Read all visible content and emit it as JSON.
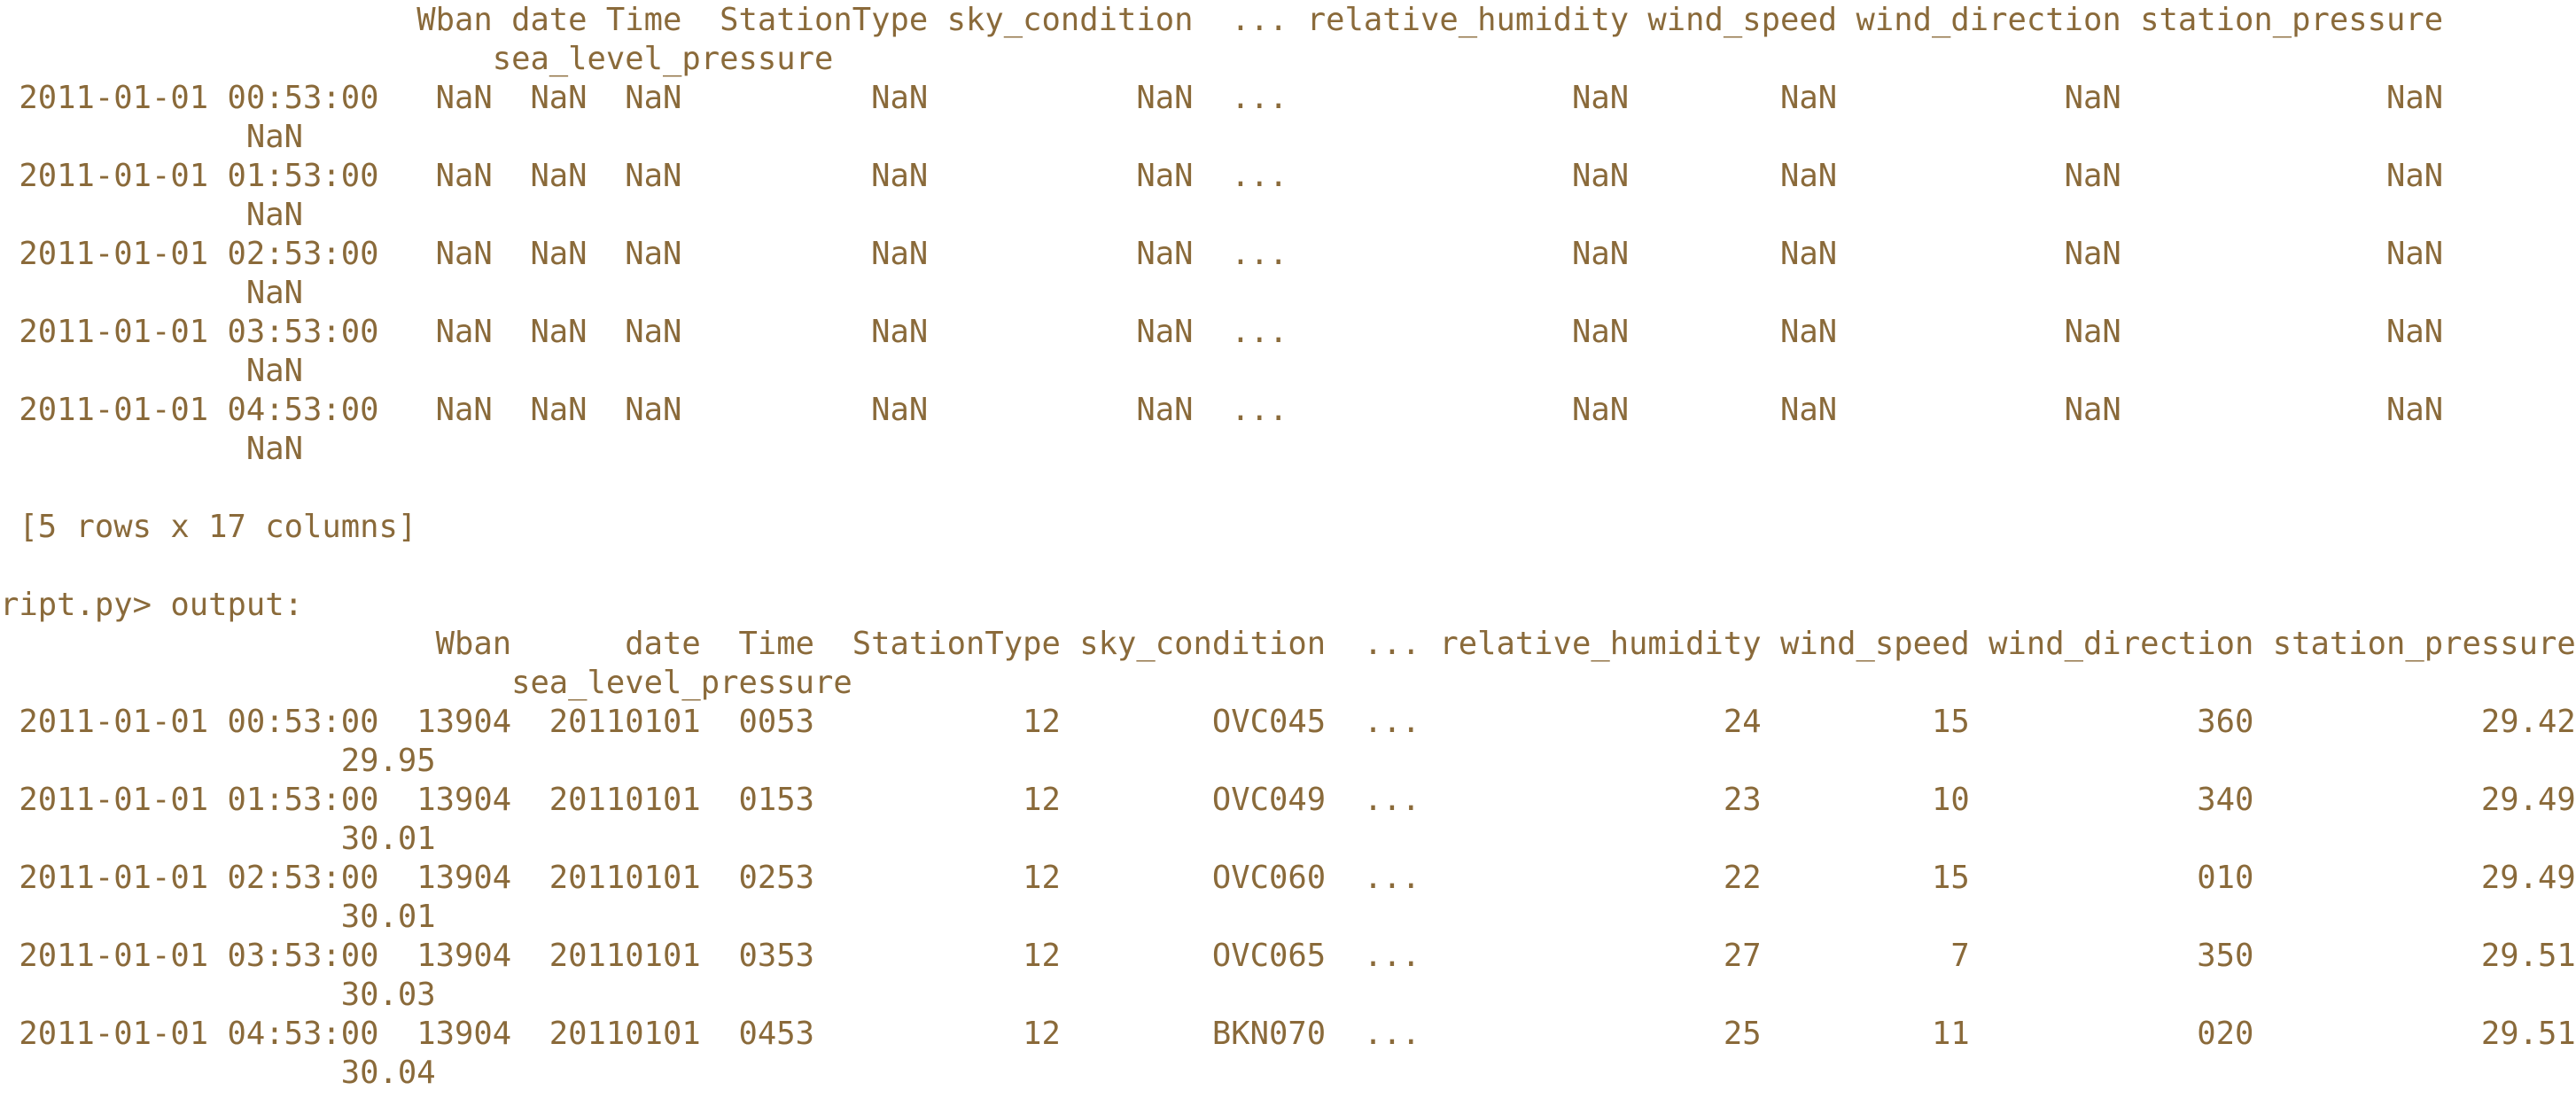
{
  "colors": {
    "background": "#ffffff",
    "text": "#8a6a3a"
  },
  "terminal": {
    "lines": [
      "                      Wban date Time  StationType sky_condition  ... relative_humidity wind_speed wind_direction station_pressure",
      "                          sea_level_pressure",
      " 2011-01-01 00:53:00   NaN  NaN  NaN          NaN           NaN  ...               NaN        NaN            NaN              NaN",
      "             NaN",
      " 2011-01-01 01:53:00   NaN  NaN  NaN          NaN           NaN  ...               NaN        NaN            NaN              NaN",
      "             NaN",
      " 2011-01-01 02:53:00   NaN  NaN  NaN          NaN           NaN  ...               NaN        NaN            NaN              NaN",
      "             NaN",
      " 2011-01-01 03:53:00   NaN  NaN  NaN          NaN           NaN  ...               NaN        NaN            NaN              NaN",
      "             NaN",
      " 2011-01-01 04:53:00   NaN  NaN  NaN          NaN           NaN  ...               NaN        NaN            NaN              NaN",
      "             NaN",
      "",
      " [5 rows x 17 columns]",
      "",
      "ript.py> output:",
      "                       Wban      date  Time  StationType sky_condition  ... relative_humidity wind_speed wind_direction station_pressure",
      "                           sea_level_pressure",
      " 2011-01-01 00:53:00  13904  20110101  0053           12        OVC045  ...                24         15            360            29.42",
      "                  29.95",
      " 2011-01-01 01:53:00  13904  20110101  0153           12        OVC049  ...                23         10            340            29.49",
      "                  30.01",
      " 2011-01-01 02:53:00  13904  20110101  0253           12        OVC060  ...                22         15            010            29.49",
      "                  30.01",
      " 2011-01-01 03:53:00  13904  20110101  0353           12        OVC065  ...                27          7            350            29.51",
      "                  30.03",
      " 2011-01-01 04:53:00  13904  20110101  0453           12        BKN070  ...                25         11            020            29.51",
      "                  30.04"
    ]
  }
}
